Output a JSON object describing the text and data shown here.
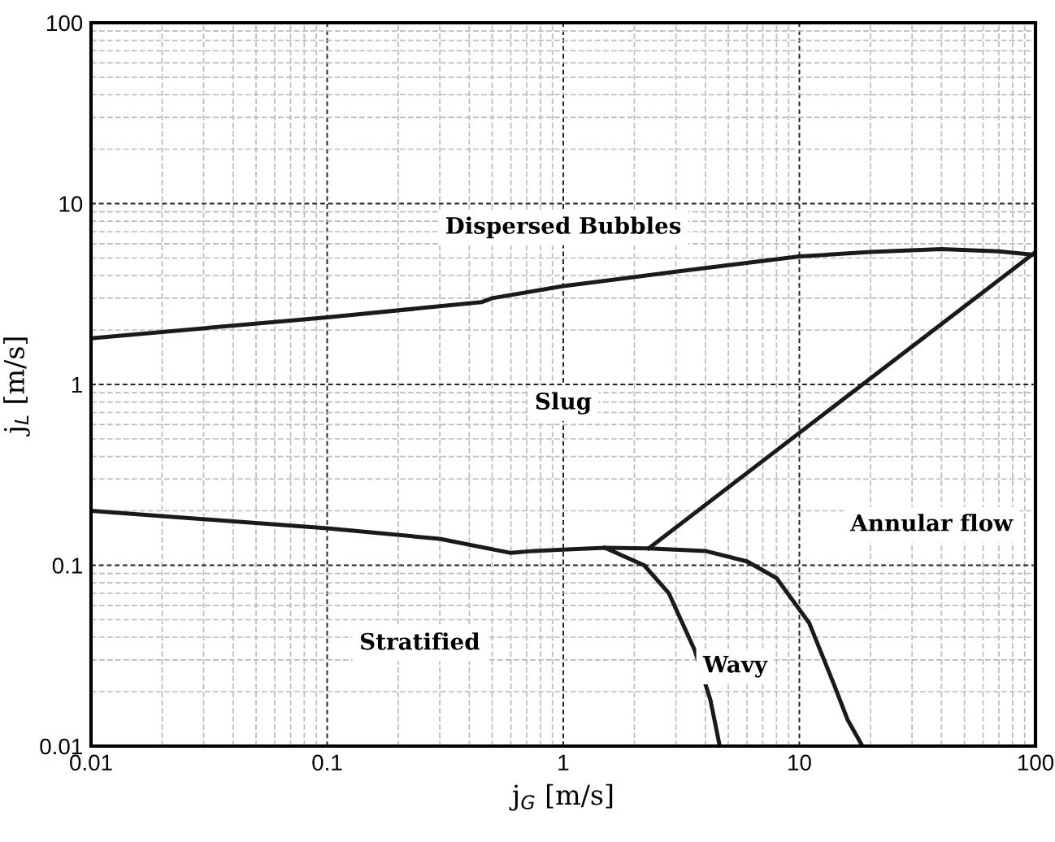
{
  "chart_data": {
    "type": "line",
    "xlabel": "j$_{G}$ [m/s]",
    "ylabel": "j$_{L}$ [m/s]",
    "log": "xy",
    "grid": true,
    "legend": false,
    "marker": "none",
    "line_style": "solid",
    "xlim": [
      0.01,
      100
    ],
    "ylim": [
      0.01,
      100
    ],
    "xticks": [
      0.01,
      0.1,
      1,
      10,
      100
    ],
    "yticks": [
      0.01,
      0.1,
      1,
      10,
      100
    ],
    "series": [
      {
        "color": "#1a1a1a",
        "x": [
          0.01,
          0.1,
          0.45,
          0.5,
          1,
          3,
          10,
          20,
          40,
          70,
          100
        ],
        "values": [
          1.8,
          2.35,
          2.85,
          3.0,
          3.5,
          4.2,
          5.1,
          5.4,
          5.6,
          5.45,
          5.2
        ]
      },
      {
        "color": "#1a1a1a",
        "x": [
          0.01,
          0.1,
          0.3,
          0.6,
          0.75,
          1,
          1.5,
          2.3,
          4,
          6,
          8,
          11,
          14,
          16,
          18.5
        ],
        "values": [
          0.2,
          0.16,
          0.14,
          0.117,
          0.12,
          0.122,
          0.125,
          0.124,
          0.12,
          0.105,
          0.085,
          0.048,
          0.022,
          0.014,
          0.01
        ]
      },
      {
        "color": "#1a1a1a",
        "x": [
          2.3,
          100
        ],
        "values": [
          0.124,
          5.4
        ]
      },
      {
        "color": "#1a1a1a",
        "x": [
          1.5,
          2.2,
          2.8,
          3.6,
          4.2,
          4.6
        ],
        "values": [
          0.125,
          0.1,
          0.07,
          0.034,
          0.018,
          0.01
        ]
      }
    ],
    "annotations": [
      "Dispersed Bubbles",
      "Slug",
      "Annular flow",
      "Stratified",
      "Wavy"
    ]
  }
}
